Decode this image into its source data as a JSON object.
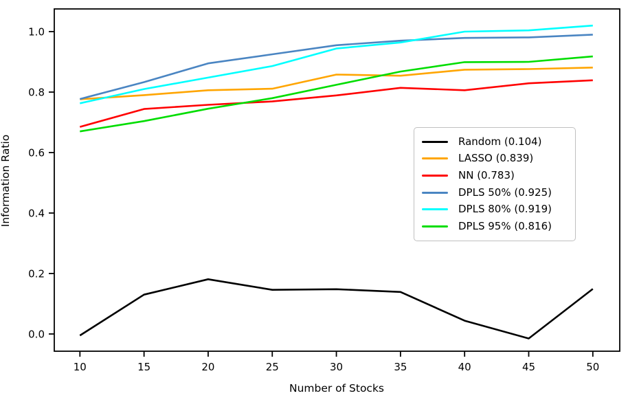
{
  "chart_data": {
    "type": "line",
    "title": "",
    "xlabel": "Number of Stocks",
    "ylabel": "Information Ratio",
    "x": [
      10,
      15,
      20,
      25,
      30,
      35,
      40,
      45,
      50
    ],
    "xticks": [
      10,
      15,
      20,
      25,
      30,
      35,
      40,
      45,
      50
    ],
    "yticks": [
      0.0,
      0.2,
      0.4,
      0.6,
      0.8,
      1.0
    ],
    "xlim": [
      8.0,
      52.1
    ],
    "ylim": [
      -0.057,
      1.075
    ],
    "grid": false,
    "legend_position": "center-right",
    "axis_color": "#000000",
    "background_color": "#ffffff",
    "series": [
      {
        "name": "Random",
        "label": "Random (0.104)",
        "color": "#000000",
        "values": [
          -0.005,
          0.13,
          0.181,
          0.146,
          0.148,
          0.139,
          0.044,
          -0.015,
          0.149
        ]
      },
      {
        "name": "LASSO",
        "label": "LASSO (0.839)",
        "color": "#ffa500",
        "values": [
          0.776,
          0.79,
          0.806,
          0.811,
          0.858,
          0.854,
          0.874,
          0.876,
          0.881
        ]
      },
      {
        "name": "NN",
        "label": "NN (0.783)",
        "color": "#ff0000",
        "values": [
          0.685,
          0.744,
          0.758,
          0.769,
          0.789,
          0.814,
          0.806,
          0.829,
          0.839
        ]
      },
      {
        "name": "DPLS 50%",
        "label": "DPLS 50% (0.925)",
        "color": "#4a85c2",
        "values": [
          0.777,
          0.833,
          0.895,
          0.925,
          0.955,
          0.97,
          0.979,
          0.981,
          0.99
        ]
      },
      {
        "name": "DPLS 80%",
        "label": "DPLS 80% (0.919)",
        "color": "#00ffff",
        "values": [
          0.763,
          0.81,
          0.848,
          0.886,
          0.944,
          0.964,
          1.0,
          1.004,
          1.02
        ]
      },
      {
        "name": "DPLS 95%",
        "label": "DPLS 95% (0.816)",
        "color": "#00dd00",
        "values": [
          0.67,
          0.704,
          0.745,
          0.78,
          0.824,
          0.868,
          0.899,
          0.9,
          0.918
        ]
      }
    ]
  }
}
